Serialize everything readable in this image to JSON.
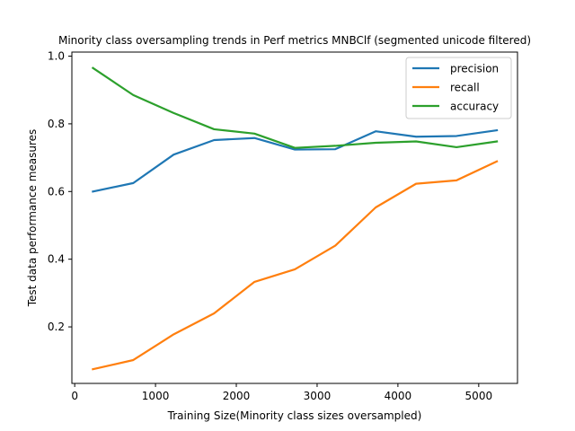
{
  "chart_data": {
    "type": "line",
    "title": "Minority class oversampling trends in Perf metrics MNBClf (segmented unicode filtered)",
    "xlabel": "Training Size(Minority class sizes oversampled)",
    "ylabel": "Test data performance measures",
    "xlim": [
      -35,
      5480
    ],
    "ylim": [
      0.033,
      1.012
    ],
    "xticks": [
      0,
      1000,
      2000,
      3000,
      4000,
      5000
    ],
    "xtick_labels": [
      "0",
      "1000",
      "2000",
      "3000",
      "4000",
      "5000"
    ],
    "yticks": [
      0.2,
      0.4,
      0.6,
      0.8,
      1.0
    ],
    "ytick_labels": [
      "0.2",
      "0.4",
      "0.6",
      "0.8",
      "1.0"
    ],
    "grid": false,
    "legend_position": "upper right",
    "x": [
      225,
      725,
      1225,
      1725,
      2225,
      2725,
      3225,
      3725,
      4225,
      4725,
      5225
    ],
    "series": [
      {
        "name": "precision",
        "color": "#1f77b4",
        "values": [
          0.6,
          0.625,
          0.709,
          0.752,
          0.758,
          0.724,
          0.725,
          0.778,
          0.762,
          0.764,
          0.781
        ]
      },
      {
        "name": "recall",
        "color": "#ff7f0e",
        "values": [
          0.075,
          0.102,
          0.178,
          0.24,
          0.333,
          0.37,
          0.44,
          0.553,
          0.623,
          0.633,
          0.689
        ]
      },
      {
        "name": "accuracy",
        "color": "#2ca02c",
        "values": [
          0.965,
          0.885,
          0.832,
          0.784,
          0.771,
          0.729,
          0.735,
          0.744,
          0.748,
          0.731,
          0.748
        ]
      }
    ]
  }
}
